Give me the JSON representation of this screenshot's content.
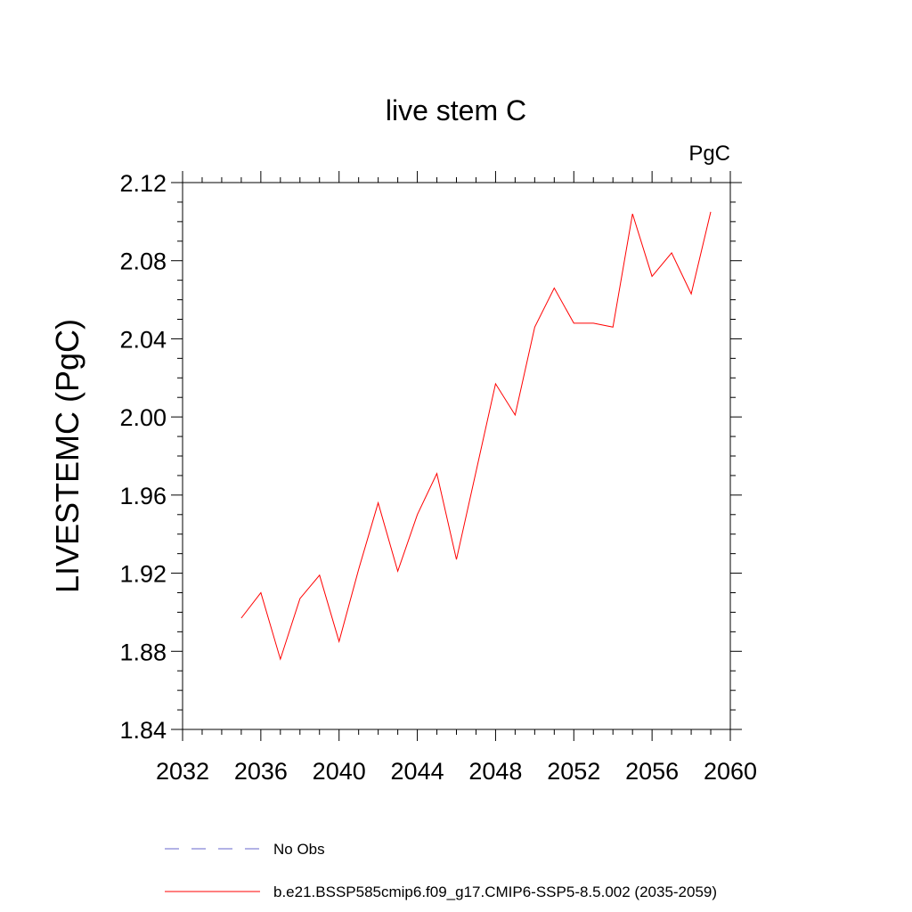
{
  "chart_data": {
    "type": "line",
    "title": "live stem C",
    "units_label": "PgC",
    "xlabel": "",
    "ylabel": "LIVESTEMC  (PgC)",
    "xlim": [
      2032,
      2060
    ],
    "ylim": [
      1.84,
      2.12
    ],
    "xticks": [
      "2032",
      "2036",
      "2040",
      "2044",
      "2048",
      "2052",
      "2056",
      "2060"
    ],
    "yticks": [
      "1.84",
      "1.88",
      "1.92",
      "1.96",
      "2.00",
      "2.04",
      "2.08",
      "2.12"
    ],
    "grid": false,
    "legend_placement": "bottom",
    "series": [
      {
        "name": "b.e21.BSSP585cmip6.f09_g17.CMIP6-SSP5-8.5.002 (2035-2059)",
        "color": "#ff0000",
        "style": "solid",
        "x": [
          2035,
          2036,
          2037,
          2038,
          2039,
          2040,
          2041,
          2042,
          2043,
          2044,
          2045,
          2046,
          2047,
          2048,
          2049,
          2050,
          2051,
          2052,
          2053,
          2054,
          2055,
          2056,
          2057,
          2058,
          2059
        ],
        "y": [
          1.897,
          1.91,
          1.876,
          1.907,
          1.919,
          1.885,
          1.922,
          1.956,
          1.921,
          1.95,
          1.971,
          1.927,
          1.972,
          2.017,
          2.001,
          2.046,
          2.066,
          2.048,
          2.048,
          2.046,
          2.104,
          2.072,
          2.084,
          2.063,
          2.105
        ]
      }
    ],
    "legend": [
      {
        "label": "No Obs",
        "color": "#6666cc",
        "style": "dashed"
      },
      {
        "label": "b.e21.BSSP585cmip6.f09_g17.CMIP6-SSP5-8.5.002 (2035-2059)",
        "color": "#ff0000",
        "style": "solid"
      }
    ]
  }
}
